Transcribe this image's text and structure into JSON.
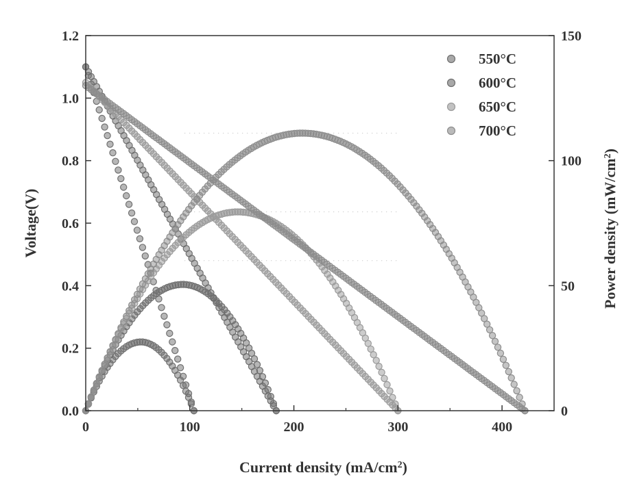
{
  "chart_data": {
    "type": "scatter",
    "title": "",
    "xlabel": "Current density (mA/cm",
    "xlabel_sup": "2",
    "xlabel_end": ")",
    "ylabel_left": "Voltage(V)",
    "ylabel_right": "Power density (mW/cm",
    "ylabel_right_sup": "2",
    "ylabel_right_end": ")",
    "xlim": [
      0,
      450
    ],
    "ylim_left": [
      0,
      1.2
    ],
    "ylim_right": [
      0,
      150
    ],
    "x_ticks": [
      0,
      100,
      200,
      300,
      400
    ],
    "x_tick_labels": [
      "0",
      "100",
      "200",
      "300",
      "400"
    ],
    "y_left_ticks": [
      0,
      0.2,
      0.4,
      0.6,
      0.8,
      1.0,
      1.2
    ],
    "y_left_tick_labels": [
      "0.0",
      "0.2",
      "0.4",
      "0.6",
      "0.8",
      "1.0",
      "1.2"
    ],
    "y_right_ticks": [
      0,
      50,
      100,
      150
    ],
    "y_right_tick_labels": [
      "0",
      "50",
      "100",
      "150"
    ],
    "legend_position": "top-right",
    "series": [
      {
        "name": "550°C",
        "color": "#707070",
        "ocv": 1.1,
        "i_max": 104,
        "peak_power": 27.5,
        "peak_current": 53
      },
      {
        "name": "600°C",
        "color": "#6e6e6e",
        "ocv": 1.1,
        "i_max": 183,
        "peak_power": 50.5,
        "peak_current": 93
      },
      {
        "name": "650°C",
        "color": "#9a9a9a",
        "ocv": 1.05,
        "i_max": 300,
        "peak_power": 79.5,
        "peak_current": 146
      },
      {
        "name": "700°C",
        "color": "#8c8c8c",
        "ocv": 1.04,
        "i_max": 422,
        "peak_power": 111,
        "peak_current": 208
      }
    ]
  }
}
